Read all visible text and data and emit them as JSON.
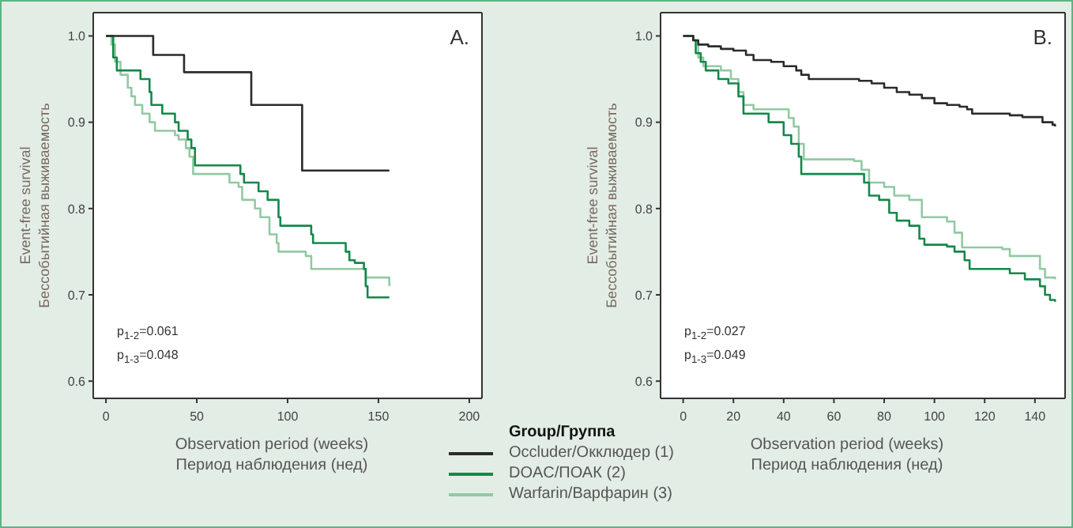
{
  "chart_data": [
    {
      "type": "step",
      "title": "A.",
      "ylabel": "Event-free survival\nБессобытийная выживаемость",
      "xlabel": "Observation period (weeks)\nПериод наблюдения (нед)",
      "legend_title": "Group/Группа",
      "legend": "bottom",
      "xlim": [
        -7,
        207
      ],
      "xticks": [
        0,
        50,
        100,
        150,
        200
      ],
      "ylim": [
        0.58,
        1.027
      ],
      "yticks": [
        0.6,
        0.7,
        0.8,
        0.9,
        {
          "value": 1,
          "label": "1.0"
        }
      ],
      "annotations": [
        "p$_{1-2}$=0.061",
        "p$_{1-3}$=0.048"
      ],
      "series": [
        {
          "name": "Occluder/Окклюдер (1)",
          "color": "#2b2b2b",
          "x": [
            0,
            26,
            43,
            80,
            108,
            156
          ],
          "values": [
            1,
            0.978,
            0.958,
            0.92,
            0.844,
            0.844
          ]
        },
        {
          "name": "DOAC/ПОАК (2)",
          "color": "#14884a",
          "x": [
            0,
            4,
            6,
            17,
            19,
            24,
            25,
            31,
            38,
            40,
            45,
            47,
            49,
            73,
            74,
            76,
            84,
            89,
            95,
            96,
            113,
            114,
            132,
            134,
            137,
            142,
            143,
            144,
            156
          ],
          "values": [
            1,
            0.975,
            0.96,
            0.96,
            0.95,
            0.935,
            0.92,
            0.91,
            0.9,
            0.89,
            0.88,
            0.87,
            0.85,
            0.85,
            0.84,
            0.83,
            0.82,
            0.81,
            0.79,
            0.78,
            0.77,
            0.76,
            0.75,
            0.74,
            0.737,
            0.73,
            0.71,
            0.697,
            0.697
          ]
        },
        {
          "name": "Warfarin/Варфарин (3)",
          "color": "#92c9a3",
          "x": [
            0,
            3,
            5,
            8,
            12,
            14,
            16,
            20,
            24,
            27,
            38,
            40,
            44,
            46,
            48,
            66,
            68,
            73,
            75,
            82,
            85,
            90,
            94,
            95,
            110,
            113,
            142,
            143,
            156
          ],
          "values": [
            1,
            0.99,
            0.97,
            0.955,
            0.94,
            0.93,
            0.92,
            0.91,
            0.9,
            0.89,
            0.885,
            0.88,
            0.87,
            0.86,
            0.84,
            0.84,
            0.83,
            0.825,
            0.81,
            0.8,
            0.79,
            0.77,
            0.76,
            0.75,
            0.745,
            0.73,
            0.73,
            0.72,
            0.71
          ]
        }
      ]
    },
    {
      "type": "step",
      "title": "B.",
      "ylabel": "Event-free survival\nБессобытийная выживаемость",
      "xlabel": "Observation period (weeks)\nПериод наблюдения (нед)",
      "xlim": [
        -9,
        152
      ],
      "xticks": [
        0,
        20,
        40,
        60,
        80,
        100,
        120,
        140
      ],
      "ylim": [
        0.58,
        1.027
      ],
      "yticks": [
        0.6,
        0.7,
        0.8,
        0.9,
        {
          "value": 1,
          "label": "1.0"
        }
      ],
      "annotations": [
        "p$_{1-2}$=0.027",
        "p$_{1-3}$=0.049"
      ],
      "series": [
        {
          "color": "#2b2b2b",
          "x": [
            0,
            4,
            6,
            10,
            15,
            20,
            25,
            28,
            35,
            40,
            45,
            47,
            50,
            70,
            75,
            80,
            85,
            90,
            95,
            100,
            105,
            110,
            113,
            115,
            125,
            130,
            135,
            140,
            143,
            147,
            148
          ],
          "values": [
            1,
            0.995,
            0.99,
            0.988,
            0.985,
            0.983,
            0.978,
            0.972,
            0.97,
            0.965,
            0.96,
            0.955,
            0.95,
            0.948,
            0.945,
            0.94,
            0.935,
            0.932,
            0.928,
            0.922,
            0.92,
            0.918,
            0.915,
            0.91,
            0.91,
            0.908,
            0.906,
            0.906,
            0.9,
            0.897,
            0.895
          ]
        },
        {
          "color": "#14884a",
          "x": [
            0,
            4,
            5,
            7,
            9,
            14,
            18,
            22,
            24,
            34,
            40,
            43,
            46,
            47,
            64,
            72,
            74,
            78,
            82,
            85,
            90,
            94,
            96,
            105,
            108,
            112,
            114,
            125,
            130,
            136,
            142,
            144,
            146,
            148
          ],
          "values": [
            1,
            0.995,
            0.98,
            0.97,
            0.96,
            0.95,
            0.945,
            0.93,
            0.91,
            0.9,
            0.885,
            0.875,
            0.86,
            0.84,
            0.84,
            0.83,
            0.815,
            0.81,
            0.795,
            0.786,
            0.78,
            0.765,
            0.758,
            0.756,
            0.75,
            0.74,
            0.73,
            0.73,
            0.725,
            0.718,
            0.71,
            0.7,
            0.694,
            0.692
          ]
        },
        {
          "color": "#92c9a3",
          "x": [
            0,
            4,
            6,
            8,
            15,
            19,
            22,
            24,
            28,
            38,
            42,
            44,
            46,
            48,
            68,
            71,
            74,
            80,
            84,
            90,
            95,
            105,
            108,
            111,
            127,
            130,
            140,
            142,
            144,
            148
          ],
          "values": [
            1,
            0.995,
            0.975,
            0.965,
            0.96,
            0.95,
            0.935,
            0.92,
            0.915,
            0.915,
            0.905,
            0.895,
            0.875,
            0.857,
            0.855,
            0.845,
            0.83,
            0.825,
            0.815,
            0.81,
            0.79,
            0.785,
            0.772,
            0.755,
            0.753,
            0.745,
            0.745,
            0.73,
            0.72,
            0.718
          ]
        }
      ]
    }
  ]
}
